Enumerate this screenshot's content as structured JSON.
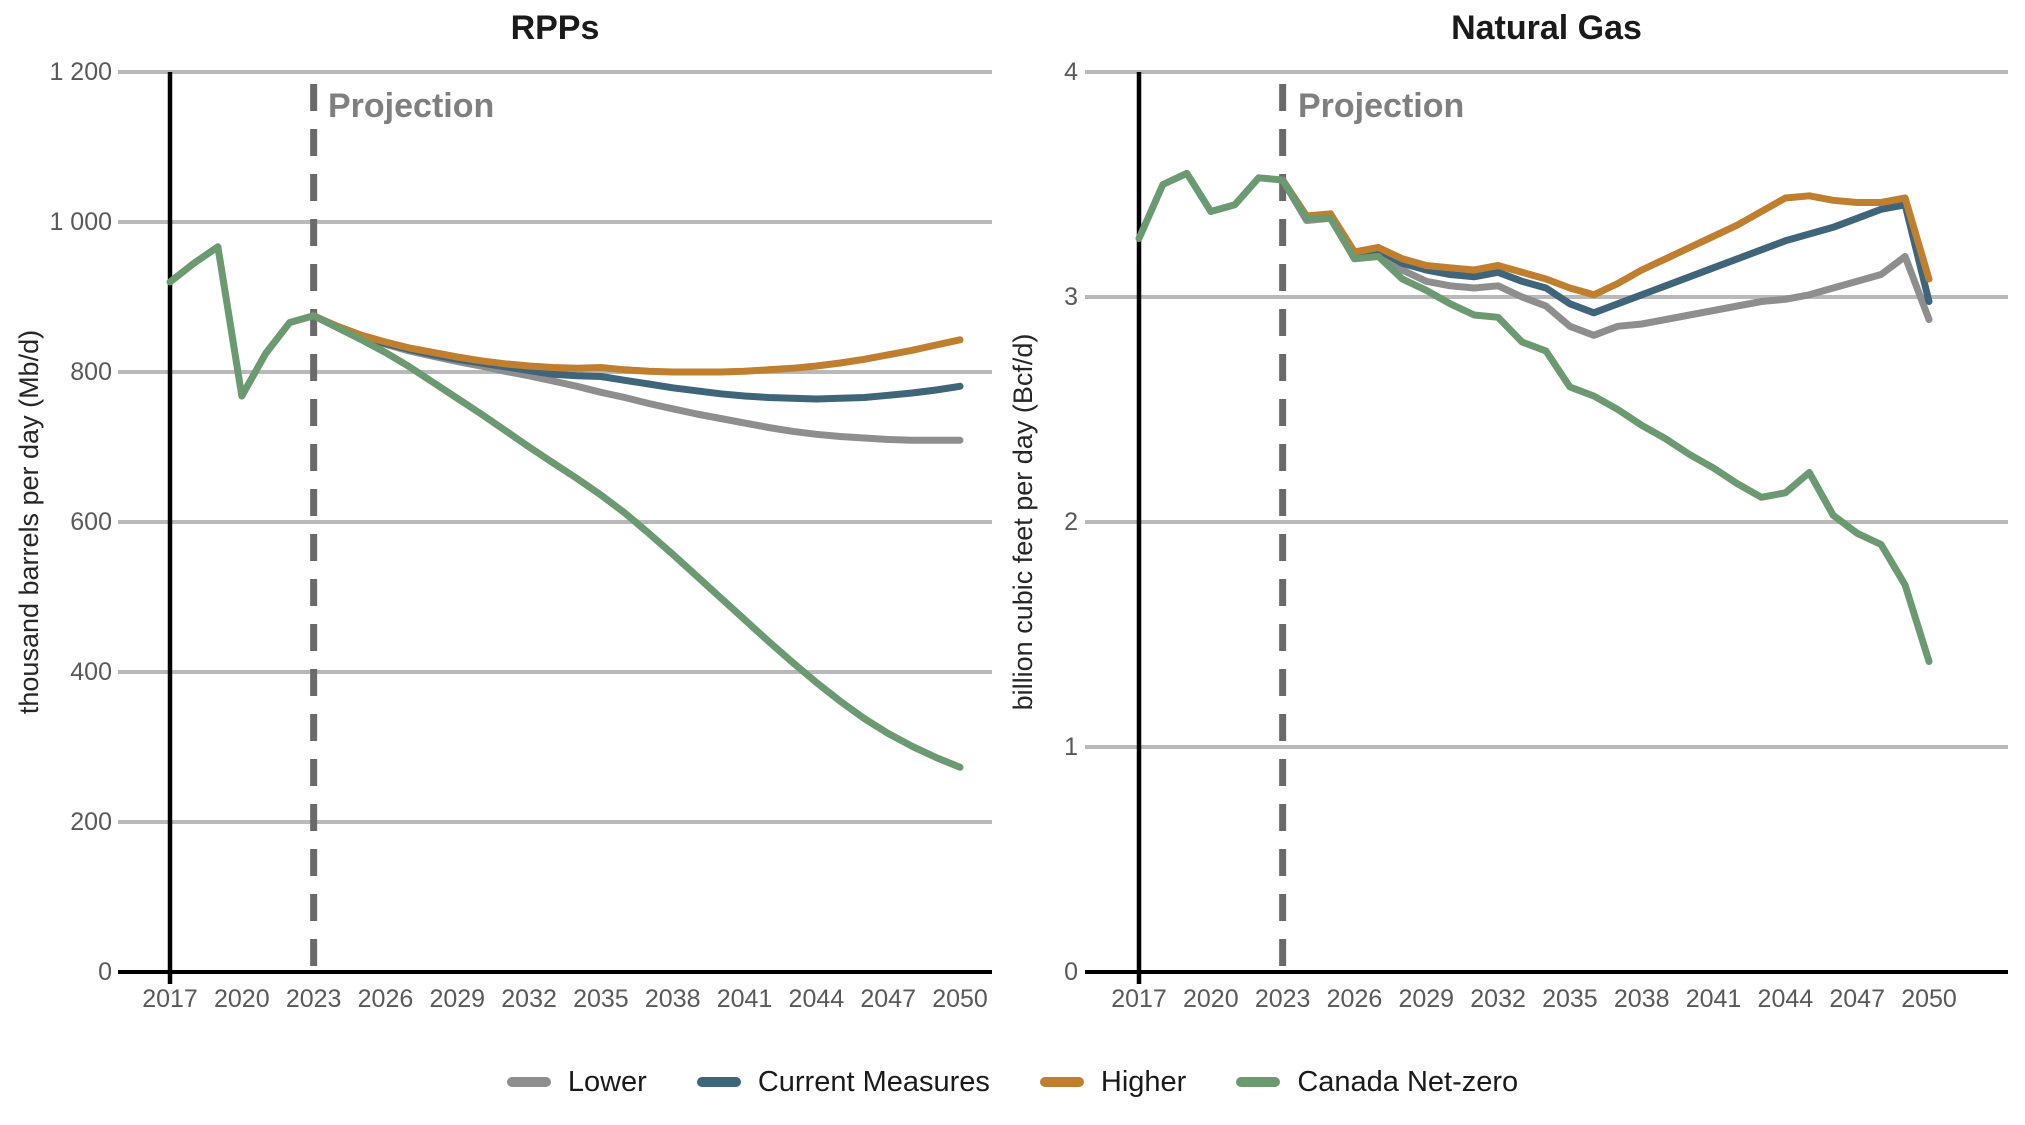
{
  "page": {
    "background": "#ffffff"
  },
  "colors": {
    "lower": "#8e8e8e",
    "current_measures": "#3e657a",
    "higher": "#bf7f2e",
    "canada_net_zero": "#6b9a70",
    "history": "#6b9a70",
    "grid": "#b9b9b9",
    "axis": "#000000",
    "vline_history": "#000000",
    "vline_projection": "#6a6a6a",
    "tick_text": "#595959",
    "title_text": "#1a1a1a",
    "projection_text": "#7f7f7f"
  },
  "legend": {
    "items": [
      {
        "key": "lower",
        "label": "Lower",
        "color": "#8e8e8e"
      },
      {
        "key": "current_measures",
        "label": "Current Measures",
        "color": "#3e657a"
      },
      {
        "key": "higher",
        "label": "Higher",
        "color": "#bf7f2e"
      },
      {
        "key": "canada_net_zero",
        "label": "Canada Net-zero",
        "color": "#6b9a70"
      }
    ]
  },
  "chart_data": [
    {
      "type": "line",
      "title": "RPPs",
      "ylabel": "thousand barrels per day (Mb/d)",
      "xlabel": "",
      "projection_label": "Projection",
      "ylim": [
        0,
        1200
      ],
      "grid": "horizontal",
      "legend_position": "bottom",
      "y_ticks": [
        0,
        200,
        400,
        600,
        800,
        1000,
        1200
      ],
      "y_tick_labels": [
        "0",
        "200",
        "400",
        "600",
        "800",
        "1 000",
        "1 200"
      ],
      "x_ticks": [
        2017,
        2020,
        2023,
        2026,
        2029,
        2032,
        2035,
        2038,
        2041,
        2044,
        2047,
        2050
      ],
      "history_line_x": 2017,
      "projection_line_x": 2023,
      "series": [
        {
          "key": "lower",
          "name": "Lower",
          "color": "#8e8e8e",
          "x": [
            2023,
            2024,
            2025,
            2026,
            2027,
            2028,
            2029,
            2030,
            2031,
            2032,
            2033,
            2034,
            2035,
            2036,
            2037,
            2038,
            2039,
            2040,
            2041,
            2042,
            2043,
            2044,
            2045,
            2046,
            2047,
            2048,
            2049,
            2050
          ],
          "values": [
            875,
            860,
            847,
            837,
            828,
            821,
            814,
            808,
            801,
            795,
            788,
            781,
            773,
            766,
            758,
            751,
            744,
            738,
            732,
            726,
            721,
            717,
            714,
            712,
            710,
            709,
            709,
            709
          ]
        },
        {
          "key": "current_measures",
          "name": "Current Measures",
          "color": "#3e657a",
          "x": [
            2023,
            2024,
            2025,
            2026,
            2027,
            2028,
            2029,
            2030,
            2031,
            2032,
            2033,
            2034,
            2035,
            2036,
            2037,
            2038,
            2039,
            2040,
            2041,
            2042,
            2043,
            2044,
            2045,
            2046,
            2047,
            2048,
            2049,
            2050
          ],
          "values": [
            875,
            860,
            847,
            838,
            830,
            823,
            817,
            812,
            807,
            802,
            797,
            795,
            794,
            789,
            784,
            779,
            775,
            771,
            768,
            766,
            765,
            764,
            765,
            766,
            769,
            772,
            776,
            781
          ]
        },
        {
          "key": "higher",
          "name": "Higher",
          "color": "#bf7f2e",
          "x": [
            2023,
            2024,
            2025,
            2026,
            2027,
            2028,
            2029,
            2030,
            2031,
            2032,
            2033,
            2034,
            2035,
            2036,
            2037,
            2038,
            2039,
            2040,
            2041,
            2042,
            2043,
            2044,
            2045,
            2046,
            2047,
            2048,
            2049,
            2050
          ],
          "values": [
            875,
            861,
            849,
            840,
            832,
            826,
            820,
            815,
            811,
            808,
            806,
            805,
            806,
            803,
            801,
            800,
            800,
            800,
            801,
            803,
            805,
            808,
            812,
            817,
            823,
            829,
            836,
            843
          ]
        },
        {
          "key": "history",
          "name": "History",
          "color": "#6b9a70",
          "x": [
            2017,
            2018,
            2019,
            2020,
            2021,
            2022,
            2023
          ],
          "values": [
            920,
            945,
            967,
            768,
            825,
            866,
            875
          ]
        },
        {
          "key": "canada_net_zero",
          "name": "Canada Net-zero",
          "color": "#6b9a70",
          "x": [
            2023,
            2024,
            2025,
            2026,
            2027,
            2028,
            2029,
            2030,
            2031,
            2032,
            2033,
            2034,
            2035,
            2036,
            2037,
            2038,
            2039,
            2040,
            2041,
            2042,
            2043,
            2044,
            2045,
            2046,
            2047,
            2048,
            2049,
            2050
          ],
          "values": [
            875,
            859,
            843,
            826,
            807,
            786,
            765,
            744,
            722,
            700,
            679,
            658,
            636,
            612,
            585,
            557,
            528,
            499,
            470,
            441,
            413,
            386,
            361,
            338,
            318,
            301,
            286,
            273
          ]
        }
      ]
    },
    {
      "type": "line",
      "title": "Natural Gas",
      "ylabel": "billion cubic feet per day (Bcf/d)",
      "xlabel": "",
      "projection_label": "Projection",
      "ylim": [
        0,
        4
      ],
      "grid": "horizontal",
      "legend_position": "bottom",
      "y_ticks": [
        0,
        1,
        2,
        3,
        4
      ],
      "y_tick_labels": [
        "0",
        "1",
        "2",
        "3",
        "4"
      ],
      "x_ticks": [
        2017,
        2020,
        2023,
        2026,
        2029,
        2032,
        2035,
        2038,
        2041,
        2044,
        2047,
        2050
      ],
      "history_line_x": 2017,
      "projection_line_x": 2023,
      "series": [
        {
          "key": "lower",
          "name": "Lower",
          "color": "#8e8e8e",
          "x": [
            2023,
            2024,
            2025,
            2026,
            2027,
            2028,
            2029,
            2030,
            2031,
            2032,
            2033,
            2034,
            2035,
            2036,
            2037,
            2038,
            2039,
            2040,
            2041,
            2042,
            2043,
            2044,
            2045,
            2046,
            2047,
            2048,
            2049,
            2050
          ],
          "values": [
            3.52,
            3.34,
            3.35,
            3.18,
            3.2,
            3.12,
            3.07,
            3.05,
            3.04,
            3.05,
            3.0,
            2.96,
            2.87,
            2.83,
            2.87,
            2.88,
            2.9,
            2.92,
            2.94,
            2.96,
            2.98,
            2.99,
            3.01,
            3.04,
            3.07,
            3.1,
            3.18,
            2.9
          ]
        },
        {
          "key": "current_measures",
          "name": "Current Measures",
          "color": "#3e657a",
          "x": [
            2023,
            2024,
            2025,
            2026,
            2027,
            2028,
            2029,
            2030,
            2031,
            2032,
            2033,
            2034,
            2035,
            2036,
            2037,
            2038,
            2039,
            2040,
            2041,
            2042,
            2043,
            2044,
            2045,
            2046,
            2047,
            2048,
            2049,
            2050
          ],
          "values": [
            3.52,
            3.35,
            3.36,
            3.19,
            3.21,
            3.15,
            3.12,
            3.1,
            3.09,
            3.11,
            3.07,
            3.04,
            2.97,
            2.93,
            2.97,
            3.01,
            3.05,
            3.09,
            3.13,
            3.17,
            3.21,
            3.25,
            3.28,
            3.31,
            3.35,
            3.39,
            3.41,
            2.98
          ]
        },
        {
          "key": "higher",
          "name": "Higher",
          "color": "#bf7f2e",
          "x": [
            2023,
            2024,
            2025,
            2026,
            2027,
            2028,
            2029,
            2030,
            2031,
            2032,
            2033,
            2034,
            2035,
            2036,
            2037,
            2038,
            2039,
            2040,
            2041,
            2042,
            2043,
            2044,
            2045,
            2046,
            2047,
            2048,
            2049,
            2050
          ],
          "values": [
            3.52,
            3.36,
            3.37,
            3.2,
            3.22,
            3.17,
            3.14,
            3.13,
            3.12,
            3.14,
            3.11,
            3.08,
            3.04,
            3.01,
            3.06,
            3.12,
            3.17,
            3.22,
            3.27,
            3.32,
            3.38,
            3.44,
            3.45,
            3.43,
            3.42,
            3.42,
            3.44,
            3.08
          ]
        },
        {
          "key": "history",
          "name": "History",
          "color": "#6b9a70",
          "x": [
            2017,
            2018,
            2019,
            2020,
            2021,
            2022,
            2023
          ],
          "values": [
            3.26,
            3.5,
            3.55,
            3.38,
            3.41,
            3.53,
            3.52
          ]
        },
        {
          "key": "canada_net_zero",
          "name": "Canada Net-zero",
          "color": "#6b9a70",
          "x": [
            2023,
            2024,
            2025,
            2026,
            2027,
            2028,
            2029,
            2030,
            2031,
            2032,
            2033,
            2034,
            2035,
            2036,
            2037,
            2038,
            2039,
            2040,
            2041,
            2042,
            2043,
            2044,
            2045,
            2046,
            2047,
            2048,
            2049,
            2050
          ],
          "values": [
            3.52,
            3.35,
            3.35,
            3.17,
            3.18,
            3.08,
            3.03,
            2.97,
            2.92,
            2.91,
            2.8,
            2.76,
            2.6,
            2.56,
            2.5,
            2.43,
            2.37,
            2.3,
            2.24,
            2.17,
            2.11,
            2.13,
            2.22,
            2.03,
            1.95,
            1.9,
            1.72,
            1.38
          ]
        }
      ]
    }
  ]
}
